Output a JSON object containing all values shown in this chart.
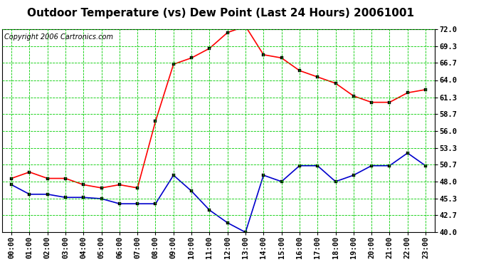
{
  "title": "Outdoor Temperature (vs) Dew Point (Last 24 Hours) 20061001",
  "copyright": "Copyright 2006 Cartronics.com",
  "x_labels": [
    "00:00",
    "01:00",
    "02:00",
    "03:00",
    "04:00",
    "05:00",
    "06:00",
    "07:00",
    "08:00",
    "09:00",
    "10:00",
    "11:00",
    "12:00",
    "13:00",
    "14:00",
    "15:00",
    "16:00",
    "17:00",
    "18:00",
    "19:00",
    "20:00",
    "21:00",
    "22:00",
    "23:00"
  ],
  "y_ticks": [
    40.0,
    42.7,
    45.3,
    48.0,
    50.7,
    53.3,
    56.0,
    58.7,
    61.3,
    64.0,
    66.7,
    69.3,
    72.0
  ],
  "y_min": 40.0,
  "y_max": 72.0,
  "temp_data": [
    48.5,
    49.5,
    48.5,
    48.5,
    47.5,
    47.0,
    47.5,
    47.0,
    57.5,
    66.5,
    67.5,
    69.0,
    71.5,
    72.5,
    68.0,
    67.5,
    65.5,
    64.5,
    63.5,
    61.5,
    60.5,
    60.5,
    62.0,
    62.5
  ],
  "dew_data": [
    47.5,
    46.0,
    46.0,
    45.5,
    45.5,
    45.3,
    44.5,
    44.5,
    44.5,
    49.0,
    46.5,
    43.5,
    41.5,
    40.0,
    49.0,
    48.0,
    50.5,
    50.5,
    48.0,
    49.0,
    50.5,
    50.5,
    52.5,
    50.5
  ],
  "temp_color": "#FF0000",
  "dew_color": "#0000CC",
  "grid_color": "#00CC00",
  "bg_color": "#FFFFFF",
  "title_fontsize": 11,
  "tick_fontsize": 7.5,
  "copyright_fontsize": 7
}
